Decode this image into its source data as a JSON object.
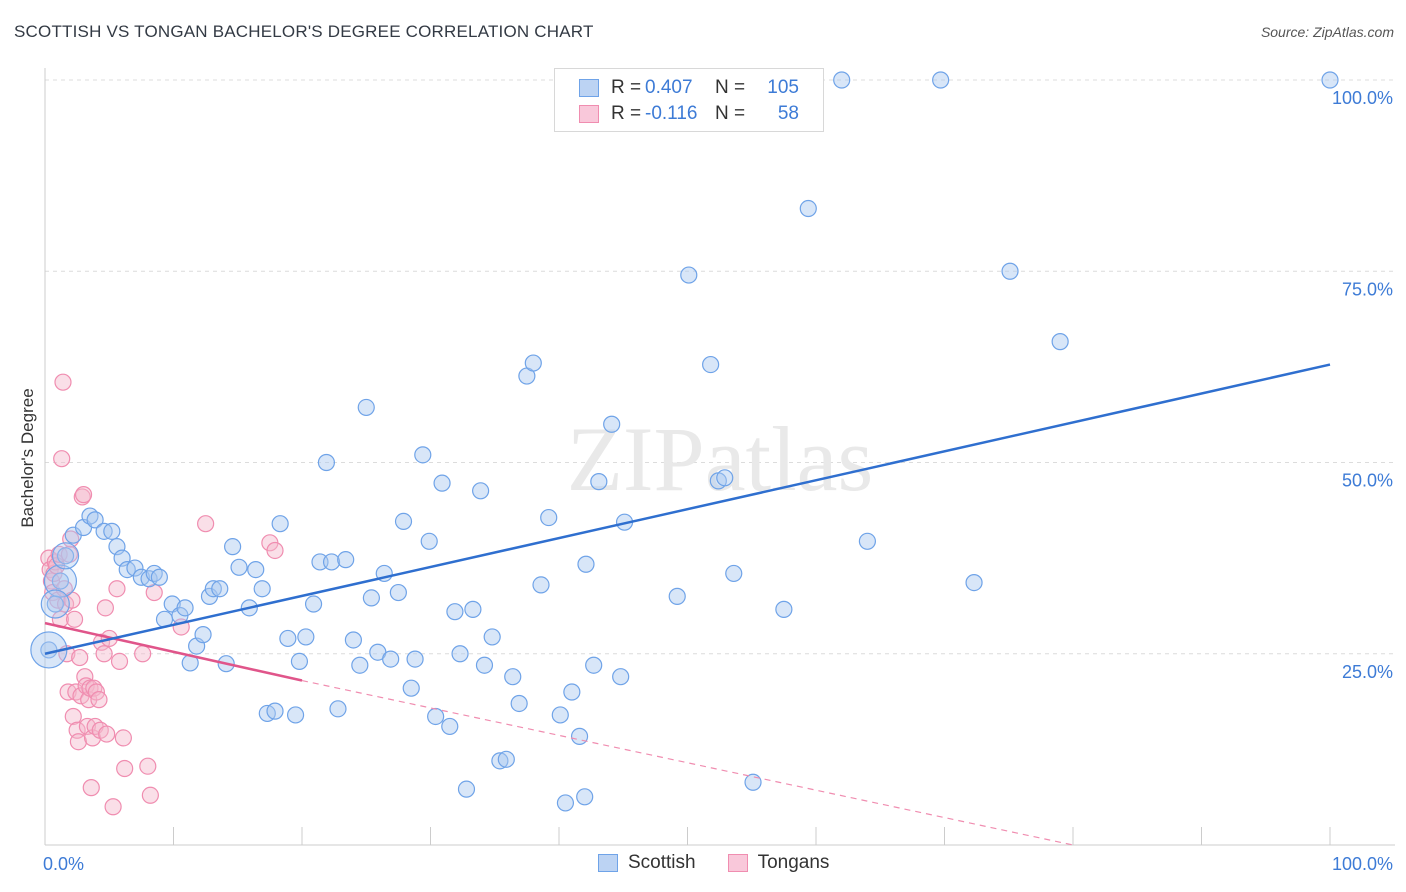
{
  "title": "SCOTTISH VS TONGAN BACHELOR'S DEGREE CORRELATION CHART",
  "source": "Source: ZipAtlas.com",
  "watermark": "ZIPatlas",
  "legend_top": [
    {
      "r_label": "R =",
      "r_value": "0.407",
      "n_label": "N =",
      "n_value": "105",
      "color": "#6fa3e8"
    },
    {
      "r_label": "R =",
      "r_value": "-0.116",
      "n_label": "N =",
      "n_value": "58",
      "color": "#f08db0"
    }
  ],
  "legend_bottom": [
    {
      "label": "Scottish",
      "color": "#6fa3e8"
    },
    {
      "label": "Tongans",
      "color": "#f08db0"
    }
  ],
  "chart_data": {
    "type": "scatter",
    "title": "SCOTTISH VS TONGAN BACHELOR'S DEGREE CORRELATION CHART",
    "xlabel": "",
    "ylabel": "Bachelor's Degree",
    "xlim": [
      0,
      100
    ],
    "ylim": [
      0,
      100
    ],
    "x_tick_labels": [
      "0.0%",
      "100.0%"
    ],
    "y_tick_labels": [
      "25.0%",
      "50.0%",
      "75.0%",
      "100.0%"
    ],
    "y_ticks": [
      25,
      50,
      75,
      100
    ],
    "grid": true,
    "series": [
      {
        "name": "Scottish",
        "color": "#6fa3e8",
        "line_color": "#2f6fcf",
        "trend": {
          "x": [
            0,
            100
          ],
          "y": [
            25.0,
            62.8
          ]
        },
        "points": [
          [
            0.3,
            25.5
          ],
          [
            0.8,
            31.5
          ],
          [
            1.2,
            34.5
          ],
          [
            1.6,
            37.8
          ],
          [
            2.2,
            40.5
          ],
          [
            3.0,
            41.5
          ],
          [
            3.5,
            43.0
          ],
          [
            3.9,
            42.5
          ],
          [
            4.6,
            41.0
          ],
          [
            5.2,
            41.0
          ],
          [
            5.6,
            39.0
          ],
          [
            6.0,
            37.5
          ],
          [
            6.4,
            36.0
          ],
          [
            7.0,
            36.2
          ],
          [
            7.5,
            35.0
          ],
          [
            8.1,
            34.8
          ],
          [
            8.5,
            35.5
          ],
          [
            8.9,
            35.0
          ],
          [
            9.3,
            29.5
          ],
          [
            9.9,
            31.5
          ],
          [
            10.5,
            30.0
          ],
          [
            10.9,
            31.0
          ],
          [
            11.3,
            23.8
          ],
          [
            11.8,
            26.0
          ],
          [
            12.3,
            27.5
          ],
          [
            12.8,
            32.5
          ],
          [
            13.1,
            33.5
          ],
          [
            13.6,
            33.5
          ],
          [
            14.1,
            23.7
          ],
          [
            14.6,
            39.0
          ],
          [
            15.1,
            36.3
          ],
          [
            15.9,
            31.0
          ],
          [
            16.4,
            36.0
          ],
          [
            16.9,
            33.5
          ],
          [
            17.3,
            17.2
          ],
          [
            17.9,
            17.5
          ],
          [
            18.3,
            42.0
          ],
          [
            18.9,
            27.0
          ],
          [
            19.5,
            17.0
          ],
          [
            19.8,
            24.0
          ],
          [
            20.3,
            27.2
          ],
          [
            20.9,
            31.5
          ],
          [
            21.4,
            37.0
          ],
          [
            21.9,
            50.0
          ],
          [
            22.3,
            37.0
          ],
          [
            22.8,
            17.8
          ],
          [
            23.4,
            37.3
          ],
          [
            24.0,
            26.8
          ],
          [
            24.5,
            23.5
          ],
          [
            25.0,
            57.2
          ],
          [
            25.4,
            32.3
          ],
          [
            25.9,
            25.2
          ],
          [
            26.4,
            35.5
          ],
          [
            26.9,
            24.3
          ],
          [
            27.5,
            33.0
          ],
          [
            27.9,
            42.3
          ],
          [
            28.5,
            20.5
          ],
          [
            28.8,
            24.3
          ],
          [
            29.4,
            51.0
          ],
          [
            29.9,
            39.7
          ],
          [
            30.4,
            16.8
          ],
          [
            30.9,
            47.3
          ],
          [
            31.5,
            15.5
          ],
          [
            31.9,
            30.5
          ],
          [
            32.3,
            25.0
          ],
          [
            32.8,
            7.3
          ],
          [
            33.3,
            30.8
          ],
          [
            33.9,
            46.3
          ],
          [
            34.2,
            23.5
          ],
          [
            34.8,
            27.2
          ],
          [
            35.4,
            11.0
          ],
          [
            35.9,
            11.2
          ],
          [
            36.4,
            22.0
          ],
          [
            36.9,
            18.5
          ],
          [
            37.5,
            61.3
          ],
          [
            38.0,
            63.0
          ],
          [
            38.6,
            34.0
          ],
          [
            39.2,
            42.8
          ],
          [
            40.1,
            17.0
          ],
          [
            40.5,
            5.5
          ],
          [
            41.0,
            20.0
          ],
          [
            41.6,
            14.2
          ],
          [
            42.0,
            6.3
          ],
          [
            42.1,
            36.7
          ],
          [
            42.7,
            23.5
          ],
          [
            43.1,
            47.5
          ],
          [
            44.1,
            55.0
          ],
          [
            44.8,
            22.0
          ],
          [
            45.1,
            42.2
          ],
          [
            49.2,
            32.5
          ],
          [
            50.1,
            74.5
          ],
          [
            51.8,
            62.8
          ],
          [
            52.4,
            47.6
          ],
          [
            52.9,
            48.0
          ],
          [
            53.6,
            35.5
          ],
          [
            55.1,
            8.2
          ],
          [
            57.5,
            30.8
          ],
          [
            59.4,
            83.2
          ],
          [
            62.0,
            100.0
          ],
          [
            64.0,
            39.7
          ],
          [
            69.7,
            100.0
          ],
          [
            72.3,
            34.3
          ],
          [
            75.1,
            75.0
          ],
          [
            79.0,
            65.8
          ],
          [
            100.0,
            100.0
          ]
        ]
      },
      {
        "name": "Tongans",
        "color": "#f08db0",
        "line_color": "#e0558a",
        "trend": {
          "x": [
            0,
            20
          ],
          "y": [
            29.0,
            21.5
          ]
        },
        "trend_extension": {
          "x": [
            20,
            80
          ],
          "y": [
            21.5,
            0
          ]
        },
        "points": [
          [
            0.3,
            37.5
          ],
          [
            0.4,
            36.0
          ],
          [
            0.5,
            34.5
          ],
          [
            0.6,
            33.0
          ],
          [
            0.7,
            35.5
          ],
          [
            0.8,
            37.0
          ],
          [
            0.9,
            36.5
          ],
          [
            1.0,
            32.0
          ],
          [
            1.1,
            38.0
          ],
          [
            1.2,
            29.5
          ],
          [
            1.3,
            50.5
          ],
          [
            1.4,
            60.5
          ],
          [
            1.5,
            33.5
          ],
          [
            1.6,
            31.5
          ],
          [
            1.7,
            25.0
          ],
          [
            1.8,
            20.0
          ],
          [
            1.9,
            38.0
          ],
          [
            2.0,
            40.0
          ],
          [
            2.1,
            32.0
          ],
          [
            2.2,
            16.8
          ],
          [
            2.3,
            29.5
          ],
          [
            2.4,
            20.0
          ],
          [
            2.5,
            15.0
          ],
          [
            2.6,
            13.5
          ],
          [
            2.7,
            24.5
          ],
          [
            2.8,
            19.5
          ],
          [
            2.9,
            45.5
          ],
          [
            3.0,
            45.8
          ],
          [
            3.1,
            22.0
          ],
          [
            3.2,
            20.8
          ],
          [
            3.3,
            15.5
          ],
          [
            3.4,
            19.0
          ],
          [
            3.5,
            20.5
          ],
          [
            3.6,
            7.5
          ],
          [
            3.7,
            14.0
          ],
          [
            3.8,
            20.5
          ],
          [
            3.9,
            15.5
          ],
          [
            4.0,
            20.0
          ],
          [
            4.2,
            19.0
          ],
          [
            4.3,
            15.0
          ],
          [
            4.4,
            26.5
          ],
          [
            4.6,
            25.0
          ],
          [
            4.7,
            31.0
          ],
          [
            4.8,
            14.5
          ],
          [
            5.0,
            27.0
          ],
          [
            5.3,
            5.0
          ],
          [
            5.6,
            33.5
          ],
          [
            5.8,
            24.0
          ],
          [
            6.1,
            14.0
          ],
          [
            6.2,
            10.0
          ],
          [
            7.6,
            25.0
          ],
          [
            8.0,
            10.3
          ],
          [
            8.2,
            6.5
          ],
          [
            8.5,
            33.0
          ],
          [
            10.6,
            28.5
          ],
          [
            12.5,
            42.0
          ],
          [
            17.5,
            39.5
          ],
          [
            17.9,
            38.5
          ]
        ]
      }
    ]
  }
}
